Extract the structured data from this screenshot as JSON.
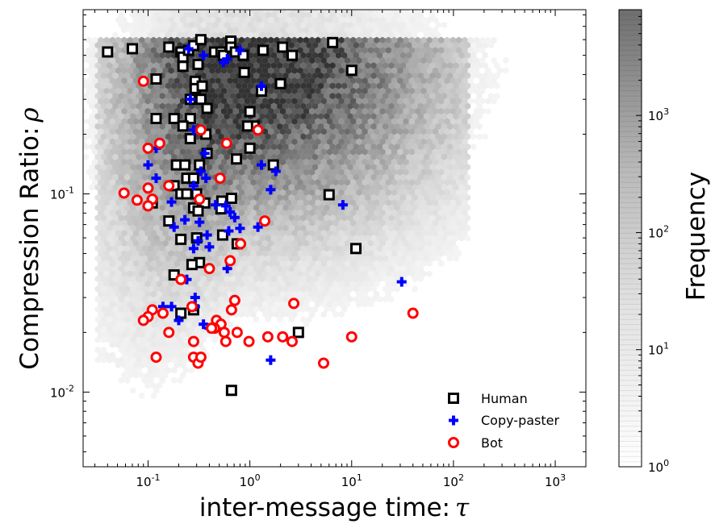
{
  "chart_data": {
    "type": "scatter",
    "title": "",
    "xlabel": "inter-message time:",
    "xlabel_symbol": "τ",
    "ylabel": "Compression Ratio:",
    "ylabel_symbol": "ρ",
    "xscale": "log",
    "yscale": "log",
    "xlim": [
      0.023,
      2000
    ],
    "ylim": [
      0.0042,
      0.85
    ],
    "grid": false,
    "legend_position": "bottom-right",
    "xticks": [
      {
        "value": 0.1,
        "base": "10",
        "exp": "-1"
      },
      {
        "value": 1,
        "base": "10",
        "exp": "0"
      },
      {
        "value": 10,
        "base": "10",
        "exp": "1"
      },
      {
        "value": 100,
        "base": "10",
        "exp": "2"
      },
      {
        "value": 1000,
        "base": "10",
        "exp": "3"
      }
    ],
    "yticks": [
      {
        "value": 0.01,
        "base": "10",
        "exp": "-2"
      },
      {
        "value": 0.1,
        "base": "10",
        "exp": "-1"
      }
    ],
    "colorbar": {
      "label": "Frequency",
      "scale": "log",
      "range": [
        1,
        8000
      ],
      "ticks": [
        {
          "value": 1,
          "base": "10",
          "exp": "0"
        },
        {
          "value": 10,
          "base": "10",
          "exp": "1"
        },
        {
          "value": 100,
          "base": "10",
          "exp": "2"
        },
        {
          "value": 1000,
          "base": "10",
          "exp": "3"
        }
      ]
    },
    "background": {
      "type": "hexbin",
      "description_color": "#000000",
      "density_peak": {
        "x": 0.7,
        "y": 0.5
      }
    },
    "series": [
      {
        "name": "Human",
        "marker": "square",
        "color": "#000000",
        "points": [
          [
            0.04,
            0.52
          ],
          [
            0.07,
            0.54
          ],
          [
            0.16,
            0.55
          ],
          [
            0.21,
            0.52
          ],
          [
            0.22,
            0.49
          ],
          [
            0.25,
            0.53
          ],
          [
            0.28,
            0.56
          ],
          [
            0.33,
            0.6
          ],
          [
            0.45,
            0.52
          ],
          [
            0.52,
            0.52
          ],
          [
            0.55,
            0.5
          ],
          [
            0.65,
            0.59
          ],
          [
            0.65,
            0.55
          ],
          [
            0.72,
            0.52
          ],
          [
            0.86,
            0.5
          ],
          [
            1.35,
            0.53
          ],
          [
            2.1,
            0.55
          ],
          [
            2.6,
            0.5
          ],
          [
            6.5,
            0.58
          ],
          [
            10.0,
            0.42
          ],
          [
            0.22,
            0.44
          ],
          [
            0.29,
            0.37
          ],
          [
            0.31,
            0.45
          ],
          [
            0.12,
            0.38
          ],
          [
            0.29,
            0.34
          ],
          [
            0.34,
            0.35
          ],
          [
            0.33,
            0.3
          ],
          [
            0.26,
            0.3
          ],
          [
            0.88,
            0.41
          ],
          [
            2.0,
            0.36
          ],
          [
            1.3,
            0.33
          ],
          [
            0.38,
            0.27
          ],
          [
            0.12,
            0.24
          ],
          [
            0.18,
            0.24
          ],
          [
            0.26,
            0.24
          ],
          [
            0.22,
            0.22
          ],
          [
            0.37,
            0.2
          ],
          [
            0.26,
            0.19
          ],
          [
            1.0,
            0.26
          ],
          [
            1.1,
            0.22
          ],
          [
            0.95,
            0.22
          ],
          [
            1.0,
            0.17
          ],
          [
            0.74,
            0.15
          ],
          [
            0.38,
            0.16
          ],
          [
            0.19,
            0.14
          ],
          [
            0.23,
            0.14
          ],
          [
            0.32,
            0.14
          ],
          [
            1.7,
            0.14
          ],
          [
            0.24,
            0.12
          ],
          [
            0.28,
            0.12
          ],
          [
            0.18,
            0.11
          ],
          [
            0.21,
            0.1
          ],
          [
            0.24,
            0.1
          ],
          [
            0.3,
            0.1
          ],
          [
            0.36,
            0.09
          ],
          [
            0.11,
            0.09
          ],
          [
            0.28,
            0.085
          ],
          [
            0.31,
            0.082
          ],
          [
            0.53,
            0.092
          ],
          [
            0.66,
            0.095
          ],
          [
            0.52,
            0.084
          ],
          [
            6.0,
            0.099
          ],
          [
            0.16,
            0.073
          ],
          [
            0.3,
            0.06
          ],
          [
            0.21,
            0.059
          ],
          [
            0.54,
            0.062
          ],
          [
            0.75,
            0.056
          ],
          [
            0.32,
            0.045
          ],
          [
            0.27,
            0.044
          ],
          [
            0.18,
            0.039
          ],
          [
            0.28,
            0.026
          ],
          [
            0.21,
            0.025
          ],
          [
            11.0,
            0.053
          ],
          [
            3.0,
            0.02
          ],
          [
            0.66,
            0.0102
          ]
        ]
      },
      {
        "name": "Copy-paster",
        "marker": "plus",
        "color": "#0000ff",
        "points": [
          [
            0.25,
            0.54
          ],
          [
            0.35,
            0.5
          ],
          [
            0.8,
            0.53
          ],
          [
            0.6,
            0.48
          ],
          [
            0.55,
            0.46
          ],
          [
            1.3,
            0.35
          ],
          [
            0.26,
            0.3
          ],
          [
            0.28,
            0.21
          ],
          [
            0.12,
            0.17
          ],
          [
            0.36,
            0.16
          ],
          [
            0.1,
            0.14
          ],
          [
            0.33,
            0.13
          ],
          [
            0.28,
            0.11
          ],
          [
            0.12,
            0.12
          ],
          [
            0.37,
            0.12
          ],
          [
            1.3,
            0.14
          ],
          [
            1.8,
            0.13
          ],
          [
            1.6,
            0.105
          ],
          [
            0.17,
            0.091
          ],
          [
            0.58,
            0.087
          ],
          [
            0.64,
            0.081
          ],
          [
            0.71,
            0.076
          ],
          [
            0.23,
            0.074
          ],
          [
            0.32,
            0.072
          ],
          [
            0.46,
            0.088
          ],
          [
            0.8,
            0.067
          ],
          [
            1.2,
            0.068
          ],
          [
            8.2,
            0.088
          ],
          [
            0.18,
            0.068
          ],
          [
            0.38,
            0.062
          ],
          [
            0.31,
            0.058
          ],
          [
            0.28,
            0.053
          ],
          [
            0.4,
            0.054
          ],
          [
            0.62,
            0.065
          ],
          [
            0.6,
            0.042
          ],
          [
            0.24,
            0.037
          ],
          [
            0.29,
            0.03
          ],
          [
            0.29,
            0.027
          ],
          [
            0.14,
            0.027
          ],
          [
            0.17,
            0.027
          ],
          [
            0.2,
            0.023
          ],
          [
            0.35,
            0.022
          ],
          [
            0.4,
            0.021
          ],
          [
            31.0,
            0.036
          ],
          [
            1.6,
            0.0145
          ]
        ]
      },
      {
        "name": "Bot",
        "marker": "circle",
        "color": "#ff0000",
        "points": [
          [
            0.09,
            0.37
          ],
          [
            0.33,
            0.21
          ],
          [
            0.13,
            0.18
          ],
          [
            0.1,
            0.17
          ],
          [
            0.59,
            0.18
          ],
          [
            1.2,
            0.21
          ],
          [
            0.16,
            0.11
          ],
          [
            0.1,
            0.107
          ],
          [
            0.51,
            0.12
          ],
          [
            0.058,
            0.101
          ],
          [
            0.078,
            0.093
          ],
          [
            0.11,
            0.094
          ],
          [
            0.32,
            0.094
          ],
          [
            0.1,
            0.087
          ],
          [
            1.4,
            0.073
          ],
          [
            0.81,
            0.056
          ],
          [
            0.64,
            0.046
          ],
          [
            0.21,
            0.037
          ],
          [
            0.4,
            0.042
          ],
          [
            0.27,
            0.027
          ],
          [
            0.11,
            0.026
          ],
          [
            0.14,
            0.025
          ],
          [
            0.1,
            0.024
          ],
          [
            0.71,
            0.029
          ],
          [
            0.66,
            0.026
          ],
          [
            0.47,
            0.023
          ],
          [
            0.52,
            0.022
          ],
          [
            0.45,
            0.021
          ],
          [
            0.56,
            0.02
          ],
          [
            0.09,
            0.023
          ],
          [
            0.16,
            0.02
          ],
          [
            0.42,
            0.021
          ],
          [
            0.28,
            0.018
          ],
          [
            0.58,
            0.018
          ],
          [
            0.75,
            0.02
          ],
          [
            0.98,
            0.018
          ],
          [
            2.1,
            0.019
          ],
          [
            2.6,
            0.018
          ],
          [
            2.7,
            0.028
          ],
          [
            1.5,
            0.019
          ],
          [
            10.0,
            0.019
          ],
          [
            40.0,
            0.025
          ],
          [
            0.12,
            0.015
          ],
          [
            0.28,
            0.015
          ],
          [
            0.31,
            0.014
          ],
          [
            0.33,
            0.015
          ],
          [
            5.3,
            0.014
          ]
        ]
      }
    ]
  }
}
